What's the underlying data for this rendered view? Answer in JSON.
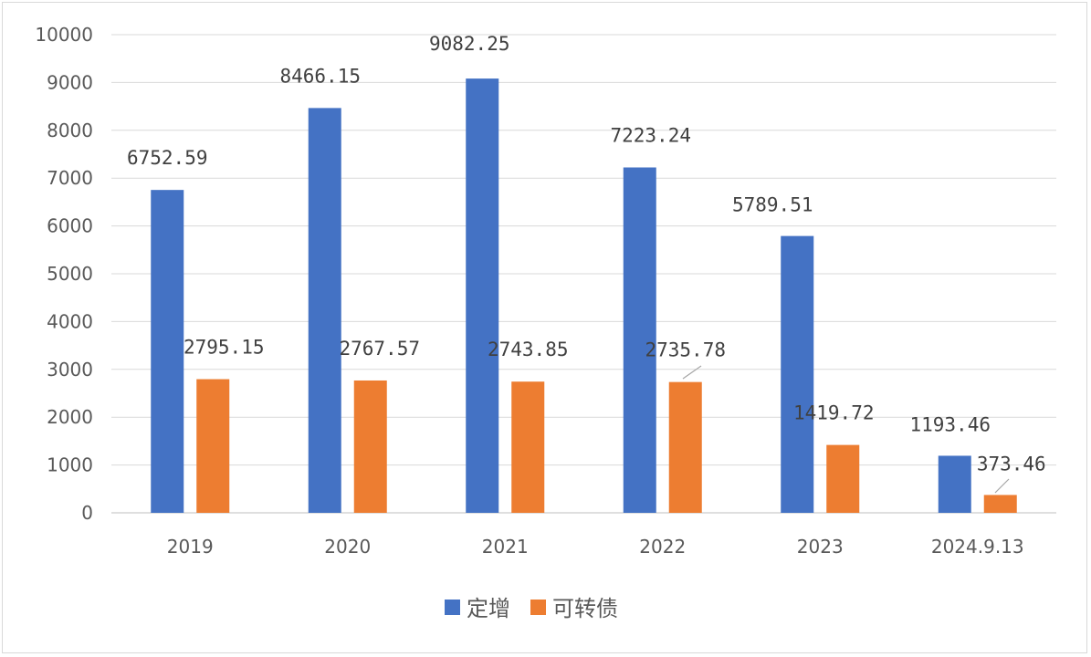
{
  "chart_data": {
    "type": "bar",
    "categories": [
      "2019",
      "2020",
      "2021",
      "2022",
      "2023",
      "2024.9.13"
    ],
    "series": [
      {
        "name": "定增",
        "color": "#4472C4",
        "values": [
          6752.59,
          8466.15,
          9082.25,
          7223.24,
          5789.51,
          1193.46
        ],
        "labels": [
          "6752.59",
          "8466.15",
          "9082.25",
          "7223.24",
          "5789.51",
          "1193.46"
        ]
      },
      {
        "name": "可转债",
        "color": "#ED7D31",
        "values": [
          2795.15,
          2767.57,
          2743.85,
          2735.78,
          1419.72,
          373.46
        ],
        "labels": [
          "2795.15",
          "2767.57",
          "2743.85",
          "2735.78",
          "1419.72",
          "373.46"
        ]
      }
    ],
    "yticks": [
      "0",
      "1000",
      "2000",
      "3000",
      "4000",
      "5000",
      "6000",
      "7000",
      "8000",
      "9000",
      "10000"
    ],
    "ylim": [
      0,
      10000
    ],
    "grid": true,
    "legend_position": "bottom",
    "title": "",
    "xlabel": "",
    "ylabel": ""
  }
}
